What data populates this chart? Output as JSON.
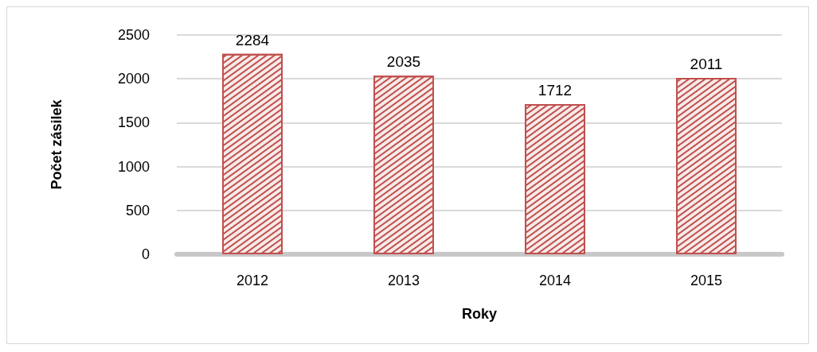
{
  "chart_data": {
    "type": "bar",
    "xlabel": "Roky",
    "ylabel": "Počet zásilek",
    "categories": [
      "2012",
      "2013",
      "2014",
      "2015"
    ],
    "values": [
      2284,
      2035,
      1712,
      2011
    ],
    "color": "#c0504d",
    "ylim": [
      0,
      2500
    ],
    "yticks": [
      0,
      500,
      1000,
      1500,
      2000,
      2500
    ],
    "grid": "y",
    "data_labels": true
  }
}
